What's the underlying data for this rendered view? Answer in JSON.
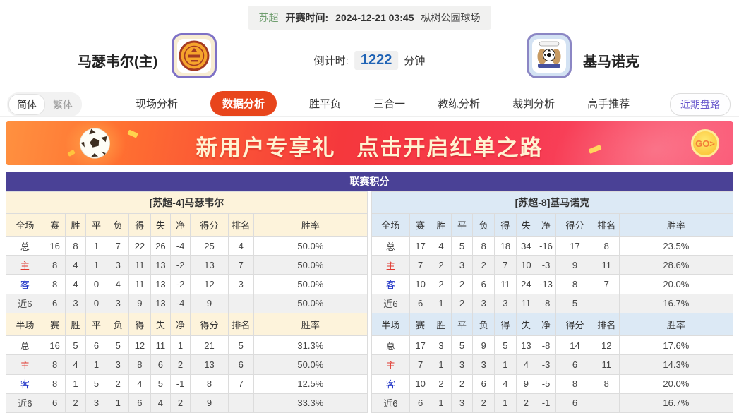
{
  "match_bar": {
    "league": "苏超",
    "kickoff_label": "开赛时间:",
    "kickoff_time": "2024-12-21 03:45",
    "venue": "枞树公园球场"
  },
  "teams": {
    "home": {
      "name": "马瑟韦尔(主)",
      "badge": "motherwell-crest"
    },
    "away": {
      "name": "基马诺克",
      "badge": "kilmarnock-crest"
    }
  },
  "countdown": {
    "label": "倒计时:",
    "value": "1222",
    "unit": "分钟"
  },
  "lang_toggle": {
    "options": [
      {
        "label": "简体",
        "active": true
      },
      {
        "label": "繁体",
        "active": false
      }
    ]
  },
  "nav": {
    "tabs": [
      {
        "label": "现场分析",
        "active": false
      },
      {
        "label": "数据分析",
        "active": true
      },
      {
        "label": "胜平负",
        "active": false
      },
      {
        "label": "三合一",
        "active": false
      },
      {
        "label": "教练分析",
        "active": false
      },
      {
        "label": "裁判分析",
        "active": false
      },
      {
        "label": "高手推荐",
        "active": false
      }
    ],
    "recent_trend_button": "近期盘路"
  },
  "banner": {
    "headline": "新用户专享礼",
    "subline": "点击开启红单之路",
    "go_label": "GO>"
  },
  "standings": {
    "title": "联赛积分",
    "full_columns": [
      "全场",
      "赛",
      "胜",
      "平",
      "负",
      "得",
      "失",
      "净",
      "得分",
      "排名",
      "胜率"
    ],
    "half_columns": [
      "半场",
      "赛",
      "胜",
      "平",
      "负",
      "得",
      "失",
      "净",
      "得分",
      "排名",
      "胜率"
    ],
    "home": {
      "header": "[苏超-4]马瑟韦尔",
      "full_rows": [
        [
          "总",
          "16",
          "8",
          "1",
          "7",
          "22",
          "26",
          "-4",
          "25",
          "4",
          "50.0%"
        ],
        [
          "主",
          "8",
          "4",
          "1",
          "3",
          "11",
          "13",
          "-2",
          "13",
          "7",
          "50.0%"
        ],
        [
          "客",
          "8",
          "4",
          "0",
          "4",
          "11",
          "13",
          "-2",
          "12",
          "3",
          "50.0%"
        ],
        [
          "近6",
          "6",
          "3",
          "0",
          "3",
          "9",
          "13",
          "-4",
          "9",
          "",
          "50.0%"
        ]
      ],
      "half_rows": [
        [
          "总",
          "16",
          "5",
          "6",
          "5",
          "12",
          "11",
          "1",
          "21",
          "5",
          "31.3%"
        ],
        [
          "主",
          "8",
          "4",
          "1",
          "3",
          "8",
          "6",
          "2",
          "13",
          "6",
          "50.0%"
        ],
        [
          "客",
          "8",
          "1",
          "5",
          "2",
          "4",
          "5",
          "-1",
          "8",
          "7",
          "12.5%"
        ],
        [
          "近6",
          "6",
          "2",
          "3",
          "1",
          "6",
          "4",
          "2",
          "9",
          "",
          "33.3%"
        ]
      ]
    },
    "away": {
      "header": "[苏超-8]基马诺克",
      "full_rows": [
        [
          "总",
          "17",
          "4",
          "5",
          "8",
          "18",
          "34",
          "-16",
          "17",
          "8",
          "23.5%"
        ],
        [
          "主",
          "7",
          "2",
          "3",
          "2",
          "7",
          "10",
          "-3",
          "9",
          "11",
          "28.6%"
        ],
        [
          "客",
          "10",
          "2",
          "2",
          "6",
          "11",
          "24",
          "-13",
          "8",
          "7",
          "20.0%"
        ],
        [
          "近6",
          "6",
          "1",
          "2",
          "3",
          "3",
          "11",
          "-8",
          "5",
          "",
          "16.7%"
        ]
      ],
      "half_rows": [
        [
          "总",
          "17",
          "3",
          "5",
          "9",
          "5",
          "13",
          "-8",
          "14",
          "12",
          "17.6%"
        ],
        [
          "主",
          "7",
          "1",
          "3",
          "3",
          "1",
          "4",
          "-3",
          "6",
          "11",
          "14.3%"
        ],
        [
          "客",
          "10",
          "2",
          "2",
          "6",
          "4",
          "9",
          "-5",
          "8",
          "8",
          "20.0%"
        ],
        [
          "近6",
          "6",
          "1",
          "3",
          "2",
          "1",
          "2",
          "-1",
          "6",
          "",
          "16.7%"
        ]
      ]
    }
  },
  "colors": {
    "header_purple": "#4a4196",
    "active_tab_orange": "#e8451c",
    "home_panel_cream": "#fdf3db",
    "away_panel_blue": "#dce9f5",
    "countdown_blue": "#1f63b5",
    "league_green": "#6f9e6f",
    "recent_button_purple": "#6a5acd"
  }
}
